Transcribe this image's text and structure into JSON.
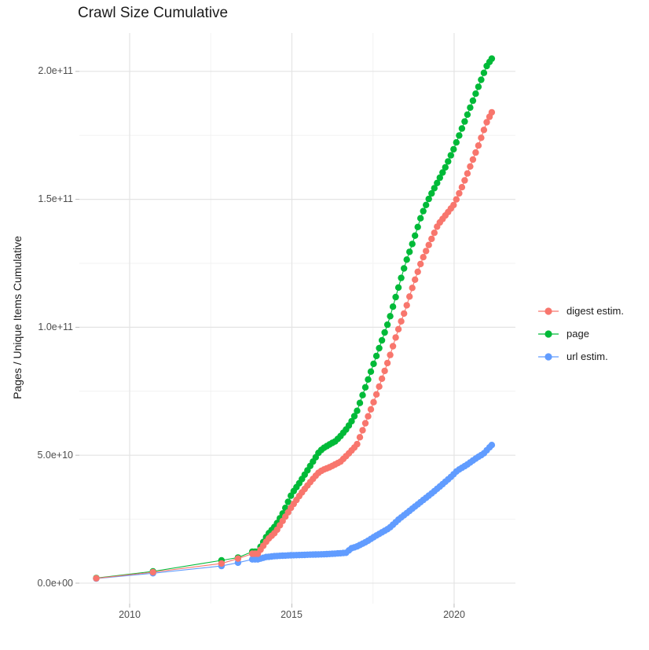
{
  "header": {
    "title": "Crawl Size Cumulative"
  },
  "y_axis": {
    "label": "Pages / Unique Items Cumulative",
    "ticks": [
      "2.0e+11",
      "1.5e+11",
      "1.0e+11",
      "5.0e+10",
      "0.0e+00"
    ]
  },
  "x_axis": {
    "ticks": [
      "2010",
      "2015",
      "2020"
    ]
  },
  "legend": {
    "entries": [
      {
        "label": "digest estim.",
        "color": "#F8766D"
      },
      {
        "label": "page",
        "color": "#00BA38"
      },
      {
        "label": "url estim.",
        "color": "#619CFF"
      }
    ]
  },
  "colors": {
    "grid_major": "#e4e4e4",
    "grid_minor": "#f2f2f2",
    "tick_mark": "#bbbbbb"
  },
  "chart_data": {
    "type": "line",
    "title": "Crawl Size Cumulative",
    "xlabel": "",
    "ylabel": "Pages / Unique Items Cumulative",
    "legend_position": "right",
    "grid": true,
    "value_unit": 1000000000,
    "xlim": [
      2008.45,
      2021.89
    ],
    "ylim": [
      -8,
      215
    ],
    "x_major_ticks": [
      2010,
      2015,
      2020
    ],
    "x_minor_ticks": [
      2012.5,
      2017.5
    ],
    "y_major_ticks": [
      0,
      50,
      100,
      150,
      200
    ],
    "y_minor_ticks": [
      25,
      75,
      125,
      175
    ],
    "sample_start": 2013.78,
    "sample_step": 0.085,
    "sample_end": 2021.16,
    "series": [
      {
        "name": "page",
        "color": "#00BA38",
        "z": 1,
        "sparse_points": [
          [
            2008.97,
            2.0
          ],
          [
            2010.72,
            4.6
          ],
          [
            2012.83,
            8.9
          ],
          [
            2013.34,
            10.0
          ]
        ],
        "anchors": [
          [
            2013.95,
            12.3
          ],
          [
            2014.25,
            19
          ],
          [
            2014.5,
            22.5
          ],
          [
            2014.75,
            28
          ],
          [
            2015.0,
            35
          ],
          [
            2015.25,
            39.5
          ],
          [
            2015.5,
            44.5
          ],
          [
            2015.7,
            48.5
          ],
          [
            2015.85,
            51.5
          ],
          [
            2016.0,
            53
          ],
          [
            2016.2,
            54.5
          ],
          [
            2016.35,
            55.5
          ],
          [
            2016.5,
            57.5
          ],
          [
            2016.7,
            60.5
          ],
          [
            2016.85,
            63.5
          ],
          [
            2017.0,
            67
          ],
          [
            2017.25,
            76
          ],
          [
            2017.5,
            85
          ],
          [
            2017.75,
            94
          ],
          [
            2018.0,
            103
          ],
          [
            2018.25,
            114
          ],
          [
            2018.5,
            125
          ],
          [
            2018.75,
            134
          ],
          [
            2019.0,
            144
          ],
          [
            2019.25,
            151
          ],
          [
            2019.5,
            157
          ],
          [
            2019.75,
            163
          ],
          [
            2020.0,
            170
          ],
          [
            2020.25,
            178
          ],
          [
            2020.5,
            186
          ],
          [
            2020.75,
            194
          ],
          [
            2021.0,
            202
          ],
          [
            2021.16,
            205
          ]
        ]
      },
      {
        "name": "url estim.",
        "color": "#619CFF",
        "z": 2,
        "sparse_points": [
          [
            2008.97,
            1.8
          ],
          [
            2010.72,
            3.9
          ],
          [
            2012.83,
            6.7
          ],
          [
            2013.34,
            8.0
          ]
        ],
        "anchors": [
          [
            2013.95,
            9.3
          ],
          [
            2014.2,
            10.2
          ],
          [
            2014.5,
            10.6
          ],
          [
            2015.0,
            10.9
          ],
          [
            2015.5,
            11.1
          ],
          [
            2016.0,
            11.3
          ],
          [
            2016.4,
            11.6
          ],
          [
            2016.7,
            11.9
          ],
          [
            2016.8,
            13.5
          ],
          [
            2017.0,
            14.3
          ],
          [
            2017.3,
            16.2
          ],
          [
            2017.6,
            18.6
          ],
          [
            2018.0,
            21.5
          ],
          [
            2018.3,
            25
          ],
          [
            2018.6,
            28
          ],
          [
            2019.0,
            32
          ],
          [
            2019.3,
            35
          ],
          [
            2019.6,
            38.2
          ],
          [
            2019.9,
            41.5
          ],
          [
            2020.1,
            44
          ],
          [
            2020.4,
            46.3
          ],
          [
            2020.7,
            49
          ],
          [
            2020.9,
            50.5
          ],
          [
            2021.16,
            54
          ]
        ]
      },
      {
        "name": "digest estim.",
        "color": "#F8766D",
        "z": 3,
        "sparse_points": [
          [
            2008.97,
            1.9
          ],
          [
            2010.72,
            4.3
          ],
          [
            2012.83,
            7.7
          ],
          [
            2013.34,
            9.6
          ]
        ],
        "anchors": [
          [
            2013.95,
            11.5
          ],
          [
            2014.25,
            17
          ],
          [
            2014.5,
            20
          ],
          [
            2014.75,
            25
          ],
          [
            2015.0,
            30
          ],
          [
            2015.25,
            34.5
          ],
          [
            2015.5,
            38.5
          ],
          [
            2015.7,
            41.5
          ],
          [
            2015.85,
            43.5
          ],
          [
            2016.0,
            44.5
          ],
          [
            2016.2,
            45.5
          ],
          [
            2016.35,
            46.5
          ],
          [
            2016.5,
            47.5
          ],
          [
            2016.7,
            50
          ],
          [
            2016.85,
            52
          ],
          [
            2017.0,
            54
          ],
          [
            2017.25,
            62
          ],
          [
            2017.5,
            70
          ],
          [
            2017.75,
            79
          ],
          [
            2018.0,
            88
          ],
          [
            2018.25,
            98
          ],
          [
            2018.5,
            107
          ],
          [
            2018.75,
            117
          ],
          [
            2019.0,
            126
          ],
          [
            2019.25,
            133
          ],
          [
            2019.5,
            140
          ],
          [
            2019.75,
            144
          ],
          [
            2020.0,
            148
          ],
          [
            2020.25,
            155
          ],
          [
            2020.5,
            163
          ],
          [
            2020.75,
            171
          ],
          [
            2021.0,
            180
          ],
          [
            2021.16,
            184
          ]
        ]
      }
    ]
  }
}
